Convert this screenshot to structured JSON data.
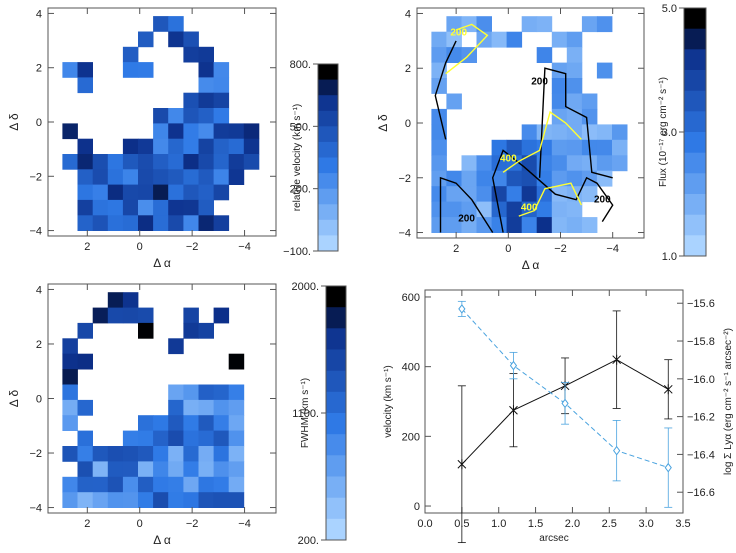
{
  "colors": {
    "low": "#aad3ff",
    "mid": "#2f7ae6",
    "high": "#0c2f8a",
    "black": "#000000",
    "yellow": "#ffff33",
    "series_dash": "#4aa3df"
  },
  "chart_data": [
    {
      "type": "heatmap",
      "xlabel": "Δ α",
      "ylabel": "Δ δ",
      "xlim": [
        3.5,
        -5.2
      ],
      "ylim": [
        -4.2,
        4.2
      ],
      "x_ticks": [
        "2",
        "0",
        "−2",
        "−4"
      ],
      "y_ticks": [
        "4",
        "2",
        "0",
        "−2",
        "−4"
      ],
      "colorbar": {
        "label": "relative velocity  (km s⁻¹)",
        "ticks": [
          "800.",
          "500.",
          "200.",
          "−100."
        ],
        "range": [
          -100,
          800
        ]
      }
    },
    {
      "type": "heatmap",
      "xlabel": "Δ α",
      "ylabel": "Δ δ",
      "xlim": [
        3.5,
        -5.2
      ],
      "ylim": [
        -4.2,
        4.2
      ],
      "x_ticks": [
        "2",
        "0",
        "−2",
        "−4"
      ],
      "y_ticks": [
        "4",
        "2",
        "0",
        "−2",
        "−4"
      ],
      "contour_labels": [
        "200",
        "200",
        "200",
        "400",
        "400",
        "200"
      ],
      "colorbar": {
        "label": "Flux  (10⁻¹⁷ erg cm⁻² s⁻¹)",
        "ticks": [
          "5.0",
          "3.0",
          "1.0"
        ],
        "range": [
          1.0,
          5.0
        ]
      }
    },
    {
      "type": "heatmap",
      "xlabel": "Δ α",
      "ylabel": "Δ δ",
      "xlim": [
        3.5,
        -5.2
      ],
      "ylim": [
        -4.2,
        4.2
      ],
      "x_ticks": [
        "2",
        "0",
        "−2",
        "−4"
      ],
      "y_ticks": [
        "4",
        "2",
        "0",
        "−2",
        "−4"
      ],
      "colorbar": {
        "label": "FWHM  (km s⁻¹)",
        "ticks": [
          "2000.",
          "1100.",
          "200."
        ],
        "range": [
          200,
          2000
        ]
      }
    },
    {
      "type": "line",
      "xlabel": "arcsec",
      "ylabel": "velocity  (km s⁻¹)",
      "y2label": "log Σ Lyα (erg cm⁻² s⁻¹ arcsec⁻²)",
      "xlim": [
        0.0,
        3.5
      ],
      "ylim": [
        -20,
        620
      ],
      "y2lim": [
        -16.71,
        -15.53
      ],
      "x_ticks": [
        "0.0",
        "0.5",
        "1.0",
        "1.5",
        "2.0",
        "2.5",
        "3.0",
        "3.5"
      ],
      "y_ticks": [
        "0",
        "200",
        "400",
        "600"
      ],
      "y2_ticks": [
        "−15.6",
        "−15.8",
        "−16.0",
        "−16.2",
        "−16.4",
        "−16.6"
      ],
      "y2_tick_values": [
        -15.6,
        -15.8,
        -16.0,
        -16.2,
        -16.4,
        -16.6
      ],
      "series": [
        {
          "axis": "left",
          "style": "solid-black-asterisk",
          "x": [
            0.5,
            1.2,
            1.9,
            2.6,
            3.3
          ],
          "y": [
            120,
            275,
            345,
            420,
            335
          ],
          "err": [
            225,
            105,
            80,
            140,
            85
          ]
        },
        {
          "axis": "right",
          "style": "dashed-blue-diamond",
          "x": [
            0.5,
            1.2,
            1.9,
            2.6,
            3.3
          ],
          "y": [
            -15.63,
            -15.93,
            -16.13,
            -16.38,
            -16.47
          ],
          "err": [
            0.04,
            0.07,
            0.11,
            0.16,
            0.21
          ]
        }
      ]
    }
  ]
}
